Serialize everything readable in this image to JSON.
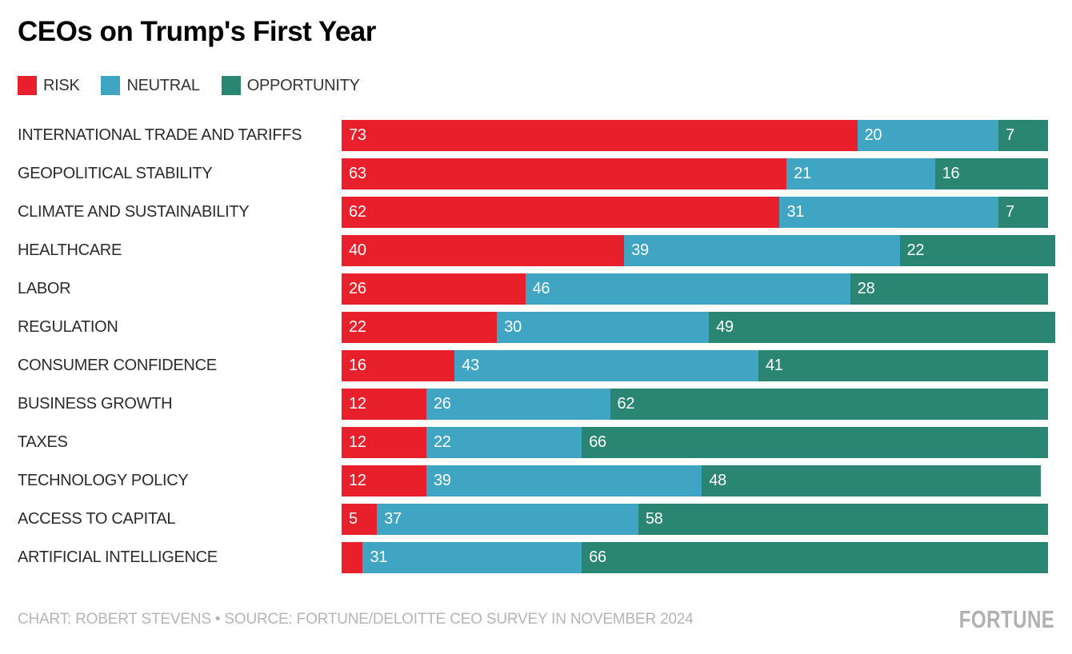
{
  "title": "CEOs on Trump's First Year",
  "legend": {
    "items": [
      {
        "key": "risk",
        "label": "RISK",
        "color": "#e8202b"
      },
      {
        "key": "neutral",
        "label": "NEUTRAL",
        "color": "#3fa5c2"
      },
      {
        "key": "opportunity",
        "label": "OPPORTUNITY",
        "color": "#2a8572"
      }
    ]
  },
  "chart_data": {
    "type": "bar",
    "orientation": "horizontal",
    "stacked": true,
    "xlim": [
      0,
      100
    ],
    "grid": false,
    "legend_position": "top",
    "categories": [
      "INTERNATIONAL TRADE AND TARIFFS",
      "GEOPOLITICAL STABILITY",
      "CLIMATE AND SUSTAINABILITY",
      "HEALTHCARE",
      "LABOR",
      "REGULATION",
      "CONSUMER CONFIDENCE",
      "BUSINESS GROWTH",
      "TAXES",
      "TECHNOLOGY POLICY",
      "ACCESS TO CAPITAL",
      "ARTIFICIAL INTELLIGENCE"
    ],
    "series": [
      {
        "name": "RISK",
        "key": "risk",
        "color": "#e8202b",
        "values": [
          73,
          63,
          62,
          40,
          26,
          22,
          16,
          12,
          12,
          12,
          5,
          3
        ]
      },
      {
        "name": "NEUTRAL",
        "key": "neutral",
        "color": "#3fa5c2",
        "values": [
          20,
          21,
          31,
          39,
          46,
          30,
          43,
          26,
          22,
          39,
          37,
          31
        ]
      },
      {
        "name": "OPPORTUNITY",
        "key": "opportunity",
        "color": "#2a8572",
        "values": [
          7,
          16,
          7,
          22,
          28,
          49,
          41,
          62,
          66,
          48,
          58,
          66
        ]
      }
    ],
    "value_labels_shown": true,
    "hidden_value_labels": [
      {
        "category": "ARTIFICIAL INTELLIGENCE",
        "series": "RISK"
      }
    ]
  },
  "footer": {
    "credit": "CHART: ROBERT STEVENS • SOURCE: FORTUNE/DELOITTE CEO SURVEY IN NOVEMBER 2024",
    "brand": "FORTUNE"
  }
}
